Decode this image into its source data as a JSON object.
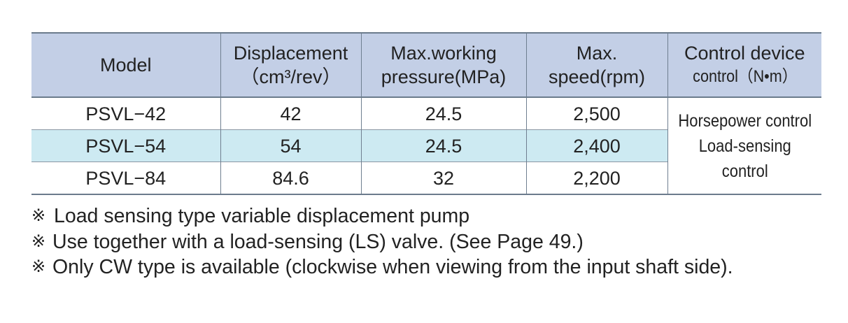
{
  "table": {
    "headers": {
      "model": "Model",
      "displacement": "Displacement",
      "displacement_unit": "（cm³/rev）",
      "pressure_line1": "Max.working",
      "pressure_line2": "pressure(MPa)",
      "speed_line1": "Max.",
      "speed_line2": "speed(rpm)",
      "control": "Control device",
      "control_unit": "control（N•m）"
    },
    "rows": [
      {
        "model": "PSVL−42",
        "displacement": "42",
        "pressure": "24.5",
        "speed": "2,500"
      },
      {
        "model": "PSVL−54",
        "displacement": "54",
        "pressure": "24.5",
        "speed": "2,400"
      },
      {
        "model": "PSVL−84",
        "displacement": "84.6",
        "pressure": "32",
        "speed": "2,200"
      }
    ],
    "control_lines": [
      "Horsepower control",
      "Load-sensing control"
    ],
    "colors": {
      "header_bg": "#c3cfe6",
      "highlight_row_bg": "#cdeaf2",
      "border": "#6b7b8c"
    }
  },
  "notes": [
    {
      "mark": "※",
      "text": " Load sensing type variable displacement pump"
    },
    {
      "mark": "※",
      "text": "Use together with a load-sensing (LS) valve. (See Page 49.)"
    },
    {
      "mark": "※",
      "text": "Only CW type is available (clockwise when viewing from the input shaft side)."
    }
  ]
}
